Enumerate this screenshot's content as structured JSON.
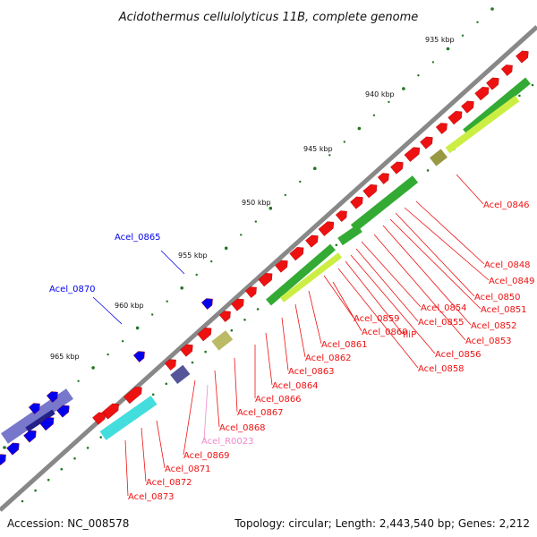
{
  "title": "Acidothermus cellulolyticus 11B, complete genome",
  "footer": {
    "accession": "Accession: NC_008578",
    "topology": "Topology: circular; Length: 2,443,540 bp; Genes: 2,212"
  },
  "colors": {
    "backbone": "#888888",
    "cds": "#ee1111",
    "cds_alt": "#0000ee",
    "rna_label": "#ee88cc",
    "dots": "#227722",
    "gc_green": "#33aa33",
    "gc_yellow": "#ccee44",
    "gc_olive": "#999944",
    "gc_cyan": "#44dddd",
    "gc_purple": "#7777cc"
  },
  "ticks": [
    "935 kbp",
    "940 kbp",
    "945 kbp",
    "950 kbp",
    "955 kbp",
    "960 kbp",
    "965 kbp"
  ],
  "labels_red": [
    "Acel_0846",
    "Acel_0848",
    "Acel_0849",
    "Acel_0850",
    "Acel_0851",
    "Acel_0852",
    "Acel_0853",
    "Acel_0854",
    "Acel_0855",
    "Acel_0856",
    "fliP",
    "Acel_0858",
    "Acel_0859",
    "Acel_0860",
    "Acel_0861",
    "Acel_0862",
    "Acel_0863",
    "Acel_0864",
    "Acel_0866",
    "Acel_0867",
    "Acel_0868",
    "Acel_0869",
    "Acel_0871",
    "Acel_0872",
    "Acel_0873"
  ],
  "labels_blue": [
    "Acel_0865",
    "Acel_0870"
  ],
  "labels_rna": [
    "Acel_R0023"
  ]
}
